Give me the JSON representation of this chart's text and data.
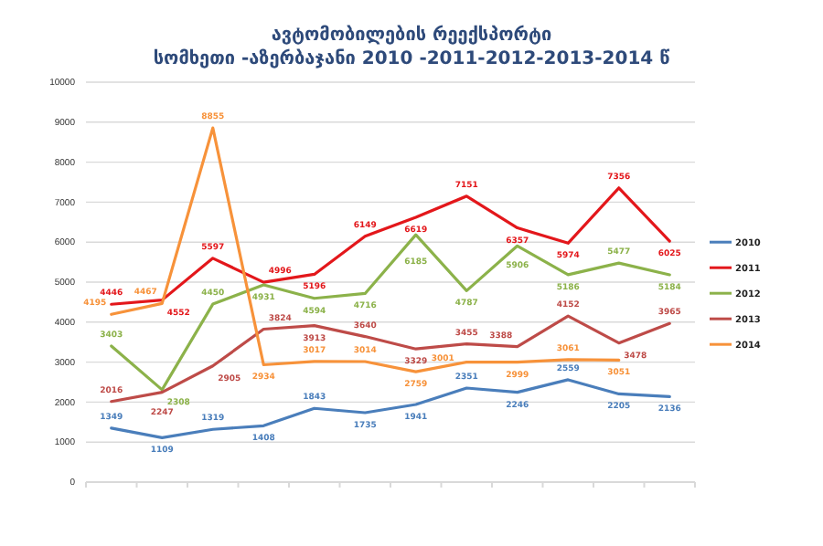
{
  "chart_data": {
    "type": "line",
    "title": "ავტომობილების  რეექსპორტი",
    "subtitle": "სომხეთი -აზერბაჯანი 2010 -2011-2012-2013-2014 წ",
    "categories": [
      null,
      null,
      null,
      null,
      null,
      null,
      null,
      null,
      null,
      null,
      null,
      null
    ],
    "series": [
      {
        "name": "2010",
        "color": "#4a7ebb",
        "values": [
          1349,
          1109,
          1319,
          1408,
          1843,
          1735,
          1941,
          2351,
          2246,
          2559,
          2205,
          2136
        ]
      },
      {
        "name": "2011",
        "color": "#e3171b",
        "values": [
          4446,
          4552,
          5597,
          4996,
          5196,
          6149,
          6619,
          7151,
          6357,
          5974,
          7356,
          6025
        ]
      },
      {
        "name": "2012",
        "color": "#8cb24a",
        "values": [
          3403,
          2308,
          4450,
          4931,
          4594,
          4716,
          6185,
          4787,
          5906,
          5186,
          5477,
          5184
        ]
      },
      {
        "name": "2013",
        "color": "#be4b48",
        "values": [
          2016,
          2247,
          2905,
          3824,
          3913,
          3640,
          3329,
          3455,
          3388,
          4152,
          3478,
          3965
        ]
      },
      {
        "name": "2014",
        "color": "#f7923a",
        "values": [
          4195,
          4467,
          8855,
          2934,
          3017,
          3014,
          2759,
          3001,
          2999,
          3061,
          3051,
          null
        ]
      }
    ],
    "ylim": [
      0,
      10000
    ],
    "yticks": [
      0,
      1000,
      2000,
      3000,
      4000,
      5000,
      6000,
      7000,
      8000,
      9000,
      10000
    ],
    "grid": "y",
    "legend": "right",
    "data_labels": true,
    "marker": "none",
    "line_style": "solid"
  }
}
